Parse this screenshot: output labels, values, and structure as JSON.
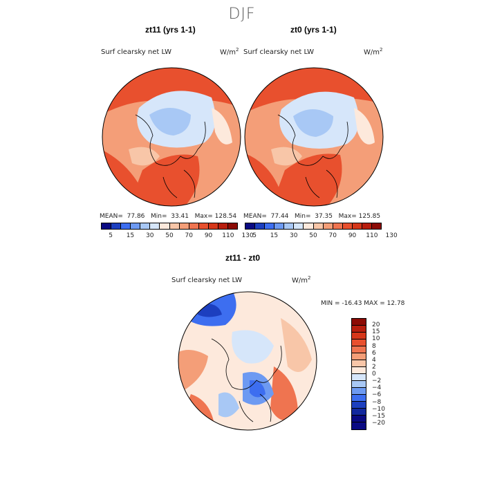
{
  "figure": {
    "season_title": "DJF"
  },
  "panels": [
    {
      "title": "zt11 (yrs 1-1)",
      "variable": "Surf clearsky net LW",
      "units": "W/m",
      "units_exp": "2",
      "stats": {
        "mean_label": "MEAN=",
        "mean": "77.86",
        "min_label": "Min=",
        "min": "33.41",
        "max_label": "Max=",
        "max": "128.54"
      }
    },
    {
      "title": "zt0 (yrs 1-1)",
      "variable": "Surf clearsky net LW",
      "units": "W/m",
      "units_exp": "2",
      "stats": {
        "mean_label": "MEAN=",
        "mean": "77.44",
        "min_label": "Min=",
        "min": "37.35",
        "max_label": "Max=",
        "max": "125.85"
      }
    }
  ],
  "colorbar_top": {
    "tick_labels": [
      "5",
      "15",
      "30",
      "50",
      "70",
      "90",
      "110",
      "130"
    ],
    "colors": [
      "#0a0a82",
      "#1c3fbf",
      "#3d6ef0",
      "#6d9af2",
      "#a8c8f5",
      "#d6e6fa",
      "#fde9dc",
      "#f8c6a8",
      "#f49e78",
      "#ef7450",
      "#e8502e",
      "#d6371a",
      "#b81e0e",
      "#8c0b05"
    ]
  },
  "diff_panel": {
    "title": "zt11 - zt0",
    "variable": "Surf clearsky net LW",
    "units": "W/m",
    "units_exp": "2",
    "minmax_text": "MIN = -16.43  MAX =  12.78",
    "colorbar": {
      "tick_labels": [
        "20",
        "15",
        "10",
        "8",
        "6",
        "4",
        "2",
        "0",
        "−2",
        "−4",
        "−6",
        "−8",
        "−10",
        "−15",
        "−20"
      ],
      "colors": [
        "#8c0b05",
        "#b81e0e",
        "#d6371a",
        "#e8502e",
        "#ef7450",
        "#f49e78",
        "#f8c6a8",
        "#fde9dc",
        "#d6e6fa",
        "#a8c8f5",
        "#6d9af2",
        "#3d6ef0",
        "#1c3fbf",
        "#12289e",
        "#0a0a82"
      ]
    }
  },
  "colors": {
    "land_contour": "#000000",
    "ocean_warm": "#e8502e",
    "arctic_cool": "#d6e6fa"
  }
}
